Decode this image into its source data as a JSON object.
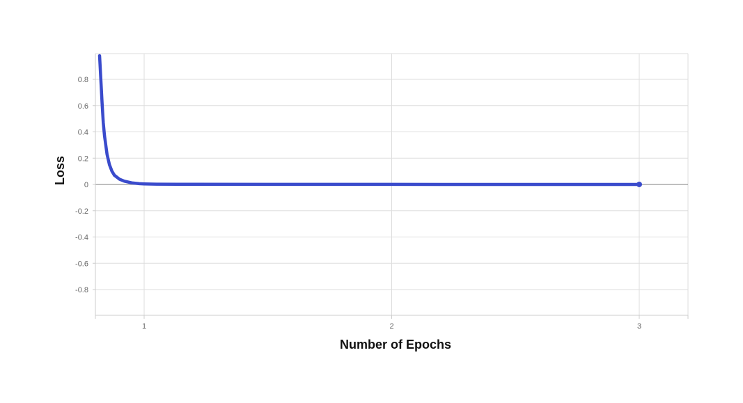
{
  "chart_data": {
    "type": "line",
    "title": "",
    "xlabel": "Number of Epochs",
    "ylabel": "Loss",
    "xlim": [
      0.8,
      3.2
    ],
    "ylim": [
      -1.0,
      1.0
    ],
    "x_ticks": [
      1,
      2,
      3
    ],
    "x_tick_labels": [
      "1",
      "2",
      "3"
    ],
    "y_ticks": [
      0.8,
      0.6,
      0.4,
      0.2,
      0,
      -0.2,
      -0.4,
      -0.6,
      -0.8
    ],
    "y_tick_labels": [
      "0.8",
      "0.6",
      "0.4",
      "0.2",
      "0",
      "-0.2",
      "-0.4",
      "-0.6",
      "-0.8"
    ],
    "grid": true,
    "legend": "none",
    "series": [
      {
        "color": "#3a4bcc",
        "x": [
          0.82,
          0.825,
          0.83,
          0.835,
          0.84,
          0.85,
          0.86,
          0.87,
          0.88,
          0.9,
          0.92,
          0.95,
          0.98,
          1.0,
          1.05,
          1.2,
          1.5,
          2.0,
          2.5,
          3.0
        ],
        "y": [
          0.98,
          0.8,
          0.62,
          0.47,
          0.37,
          0.23,
          0.15,
          0.1,
          0.07,
          0.04,
          0.025,
          0.012,
          0.006,
          0.004,
          0.002,
          0.001,
          0.0005,
          0.0003,
          0.0002,
          0.0001
        ]
      }
    ]
  },
  "colors": {
    "grid": "#dddddd",
    "zero_line": "#999999",
    "axis": "#cccccc",
    "tick_text": "#666666",
    "title_text": "#111111",
    "line": "#3a4bcc"
  }
}
